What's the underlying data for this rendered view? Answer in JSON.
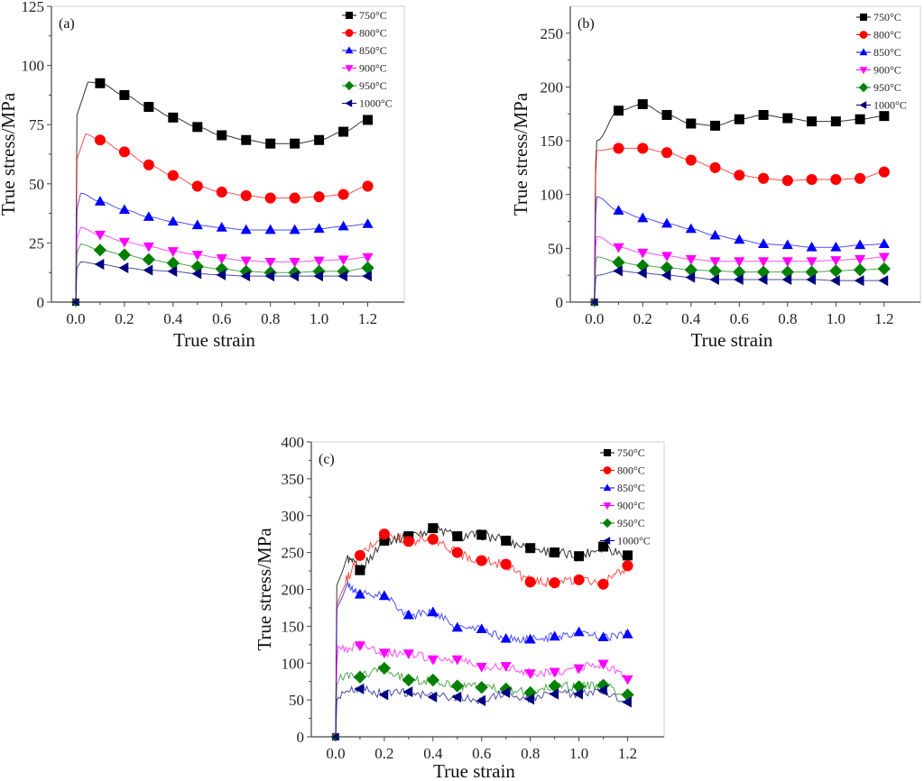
{
  "series_meta": [
    {
      "name": "750°C",
      "color": "#000000",
      "marker": "square"
    },
    {
      "name": "800°C",
      "color": "#ff0000",
      "marker": "circle"
    },
    {
      "name": "850°C",
      "color": "#0000ff",
      "marker": "triangle-up"
    },
    {
      "name": "900°C",
      "color": "#ff00ff",
      "marker": "triangle-down"
    },
    {
      "name": "950°C",
      "color": "#008000",
      "marker": "diamond"
    },
    {
      "name": "1000°C",
      "color": "#000080",
      "marker": "triangle-left"
    }
  ],
  "chart_data": [
    {
      "type": "line",
      "panel": "(a)",
      "xlabel": "True strain",
      "ylabel": "True stress/MPa",
      "xlim": [
        -0.1,
        1.35
      ],
      "ylim": [
        0,
        125
      ],
      "xticks": [
        "0.0",
        "0.2",
        "0.4",
        "0.6",
        "0.8",
        "1.0",
        "1.2"
      ],
      "yticks": [
        "0",
        "25",
        "50",
        "75",
        "100",
        "125"
      ],
      "legend": "top-right",
      "x": [
        0.1,
        0.2,
        0.3,
        0.4,
        0.5,
        0.6,
        0.7,
        0.8,
        0.9,
        1.0,
        1.1,
        1.2
      ],
      "series": [
        {
          "name": "750°C",
          "peak": [
            0.05,
            93
          ],
          "values": [
            92.5,
            87.5,
            82.5,
            78,
            74,
            70.5,
            68.5,
            67,
            67,
            68.5,
            72,
            77
          ]
        },
        {
          "name": "800°C",
          "peak": [
            0.04,
            71
          ],
          "values": [
            68.5,
            63.5,
            58,
            53.5,
            49,
            46.5,
            45,
            44,
            44,
            44.5,
            45.5,
            49
          ]
        },
        {
          "name": "850°C",
          "peak": [
            0.02,
            46
          ],
          "values": [
            42.5,
            39,
            36,
            34,
            32.5,
            31.5,
            30.5,
            30.5,
            30.5,
            31,
            32,
            33
          ]
        },
        {
          "name": "900°C",
          "peak": [
            0.02,
            31.5
          ],
          "values": [
            28.5,
            25.5,
            23.5,
            21.5,
            20,
            18.5,
            17.5,
            17,
            17,
            17.5,
            18,
            19
          ]
        },
        {
          "name": "950°C",
          "peak": [
            0.02,
            24.5
          ],
          "values": [
            22,
            20,
            18,
            16.5,
            15,
            14,
            13,
            12.5,
            12.5,
            13,
            13,
            14.5
          ]
        },
        {
          "name": "1000°C",
          "peak": [
            0.02,
            17
          ],
          "values": [
            16,
            14.5,
            13.5,
            13,
            12,
            11.5,
            11,
            11,
            11,
            11,
            11,
            11
          ]
        }
      ]
    },
    {
      "type": "line",
      "panel": "(b)",
      "xlabel": "True strain",
      "ylabel": "True stress/MPa",
      "xlim": [
        -0.1,
        1.35
      ],
      "ylim": [
        0,
        275
      ],
      "xticks": [
        "0.0",
        "0.2",
        "0.4",
        "0.6",
        "0.8",
        "1.0",
        "1.2"
      ],
      "yticks": [
        "0",
        "50",
        "100",
        "150",
        "200",
        "250"
      ],
      "legend": "top-right",
      "x": [
        0.1,
        0.2,
        0.3,
        0.4,
        0.5,
        0.6,
        0.7,
        0.8,
        0.9,
        1.0,
        1.1,
        1.2
      ],
      "series": [
        {
          "name": "750°C",
          "peak": [
            0.01,
            150
          ],
          "values": [
            178,
            184,
            174,
            166,
            164,
            170,
            174,
            171,
            168,
            168,
            170,
            173
          ]
        },
        {
          "name": "800°C",
          "peak": [
            0.01,
            141
          ],
          "values": [
            143,
            143,
            139,
            132,
            125,
            118,
            115,
            113,
            114,
            114,
            115,
            121
          ]
        },
        {
          "name": "850°C",
          "peak": [
            0.01,
            98
          ],
          "values": [
            85,
            78,
            73,
            68,
            62,
            58,
            54,
            53,
            51,
            51,
            53,
            54
          ]
        },
        {
          "name": "900°C",
          "peak": [
            0.01,
            61
          ],
          "values": [
            51,
            46,
            43,
            40,
            38,
            38,
            38,
            38,
            38,
            39,
            40,
            42
          ]
        },
        {
          "name": "950°C",
          "peak": [
            0.01,
            42
          ],
          "values": [
            37,
            34,
            32,
            30,
            29,
            28,
            28,
            28,
            28,
            29,
            30,
            31
          ]
        },
        {
          "name": "1000°C",
          "peak": [
            0.01,
            25
          ],
          "values": [
            29,
            27,
            25,
            23,
            21,
            21,
            21,
            21,
            21,
            20,
            20,
            20
          ]
        }
      ]
    },
    {
      "type": "line",
      "panel": "(c)",
      "xlabel": "True strain",
      "ylabel": "True stress/MPa",
      "xlim": [
        -0.1,
        1.35
      ],
      "ylim": [
        0,
        400
      ],
      "xticks": [
        "0.0",
        "0.2",
        "0.4",
        "0.6",
        "0.8",
        "1.0",
        "1.2"
      ],
      "yticks": [
        "0",
        "50",
        "100",
        "150",
        "200",
        "250",
        "300",
        "350",
        "400"
      ],
      "legend": "top-right",
      "x": [
        0.1,
        0.2,
        0.3,
        0.4,
        0.5,
        0.6,
        0.7,
        0.8,
        0.9,
        1.0,
        1.1,
        1.2
      ],
      "series": [
        {
          "name": "750°C",
          "peak": [
            0.05,
            242
          ],
          "values": [
            226,
            266,
            272,
            283,
            272,
            274,
            266,
            256,
            250,
            245,
            258,
            246
          ]
        },
        {
          "name": "800°C",
          "peak": [
            0.04,
            210
          ],
          "values": [
            246,
            275,
            265,
            268,
            250,
            239,
            234,
            210,
            209,
            213,
            207,
            232
          ]
        },
        {
          "name": "850°C",
          "peak": [
            0.05,
            205
          ],
          "values": [
            193,
            191,
            165,
            169,
            148,
            146,
            133,
            132,
            136,
            142,
            135,
            139
          ]
        },
        {
          "name": "900°C",
          "peak": [
            0.01,
            117
          ],
          "values": [
            124,
            114,
            113,
            105,
            105,
            95,
            96,
            86,
            88,
            93,
            99,
            78
          ]
        },
        {
          "name": "950°C",
          "peak": [
            0.02,
            82
          ],
          "values": [
            81,
            93,
            77,
            77,
            69,
            67,
            65,
            60,
            69,
            68,
            70,
            57
          ]
        },
        {
          "name": "1000°C",
          "peak": [
            0.02,
            58
          ],
          "values": [
            65,
            57,
            61,
            54,
            54,
            49,
            60,
            51,
            58,
            58,
            63,
            47
          ]
        }
      ]
    }
  ]
}
